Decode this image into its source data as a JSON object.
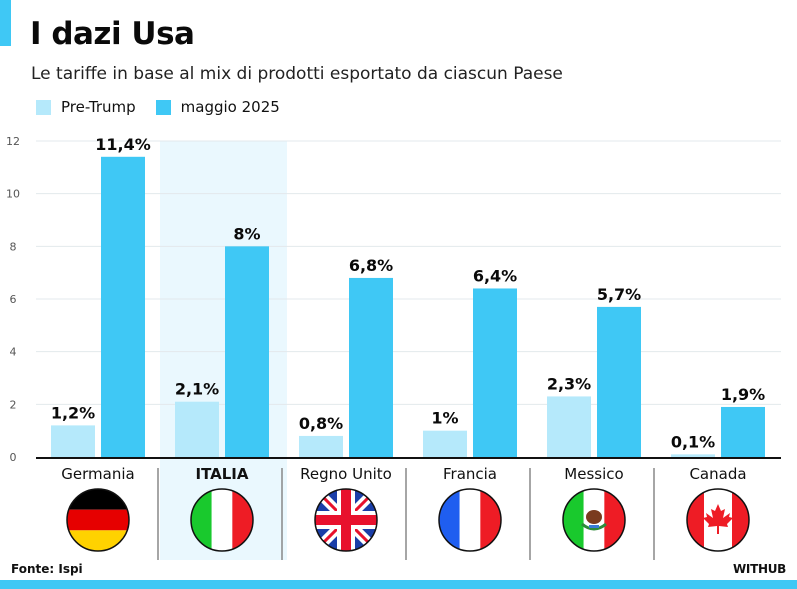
{
  "header": {
    "title": "I dazi Usa",
    "subtitle": "Le tariffe in base al mix di prodotti esportato da ciascun Paese"
  },
  "legend": [
    {
      "label": "Pre-Trump",
      "color": "#b5e9fb"
    },
    {
      "label": "maggio 2025",
      "color": "#3fc8f5"
    }
  ],
  "colors": {
    "accent": "#3fc8f5",
    "pre_trump": "#b5e9fb",
    "maggio_2025": "#3fc8f5",
    "highlight_bg": "#eaf8fe",
    "axis": "#111111",
    "grid": "#e3e9ec"
  },
  "chart_data": {
    "type": "bar",
    "title": "I dazi Usa",
    "subtitle": "Le tariffe in base al mix di prodotti esportato da ciascun Paese",
    "xlabel": "",
    "ylabel": "",
    "ylim": [
      0,
      12
    ],
    "yticks": [
      0,
      2,
      4,
      6,
      8,
      10,
      12
    ],
    "grid": true,
    "legend_position": "top-left",
    "categories": [
      "Germania",
      "ITALIA",
      "Regno Unito",
      "Francia",
      "Messico",
      "Canada"
    ],
    "highlighted_category": "ITALIA",
    "series": [
      {
        "name": "Pre-Trump",
        "values": [
          1.2,
          2.1,
          0.8,
          1.0,
          2.3,
          0.1
        ],
        "labels": [
          "1,2%",
          "2,1%",
          "0,8%",
          "1%",
          "2,3%",
          "0,1%"
        ]
      },
      {
        "name": "maggio 2025",
        "values": [
          11.4,
          8.0,
          6.8,
          6.4,
          5.7,
          1.9
        ],
        "labels": [
          "11,4%",
          "8%",
          "6,8%",
          "6,4%",
          "5,7%",
          "1,9%"
        ]
      }
    ],
    "flags": [
      "germany-flag",
      "italy-flag",
      "uk-flag",
      "france-flag",
      "mexico-flag",
      "canada-flag"
    ]
  },
  "footer": {
    "source": "Fonte: Ispi",
    "brand": "WITHUB"
  }
}
